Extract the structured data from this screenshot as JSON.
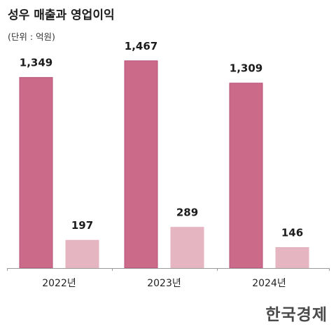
{
  "title": "성우 매출과 영업이익",
  "subtitle": "(단위 : 억원)",
  "source_logo": "한국경제",
  "colors": {
    "revenue": "#CC6A8A",
    "revenue_edge": "#B8507A",
    "operating_profit": "#E5B5C2",
    "axis": "#9A9A9A",
    "value_label": "#1C1C1C",
    "tick_label": "#222222"
  },
  "chart_data": {
    "type": "bar",
    "categories": [
      "2022년",
      "2023년",
      "2024년"
    ],
    "series": [
      {
        "values": [
          1349,
          1467,
          1309
        ]
      },
      {
        "values": [
          197,
          289,
          146
        ]
      }
    ],
    "value_labels": [
      [
        "1,349",
        "1,467",
        "1,309"
      ],
      [
        "197",
        "289",
        "146"
      ]
    ],
    "ylim": [
      0,
      1600
    ],
    "grid": false,
    "legend": "none"
  }
}
